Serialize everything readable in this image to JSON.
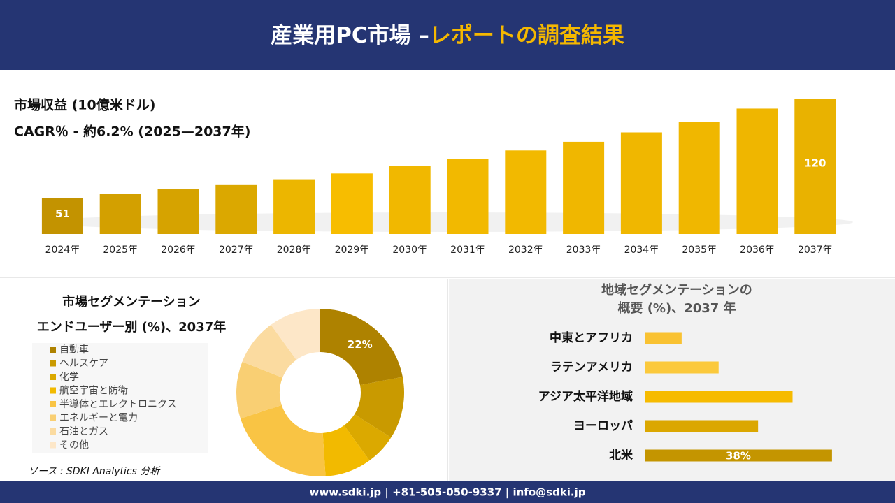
{
  "header": {
    "title": "産業用PC市場 –",
    "title_highlight": "レポートの調査結果"
  },
  "chart_data": [
    {
      "type": "bar",
      "title": "市場収益 (10億米ドル)",
      "subtitle": "CAGR％ - 約6.2% (2025—2037年)",
      "categories": [
        "2024年",
        "2025年",
        "2026年",
        "2027年",
        "2028年",
        "2029年",
        "2030年",
        "2031年",
        "2032年",
        "2033年",
        "2034年",
        "2035年",
        "2036年",
        "2037年"
      ],
      "values": [
        51,
        54,
        57,
        60,
        64,
        68,
        73,
        78,
        84,
        90,
        96.5,
        104,
        113,
        120
      ],
      "value_labels": [
        "51",
        null,
        null,
        null,
        null,
        null,
        null,
        null,
        null,
        null,
        null,
        null,
        null,
        "120"
      ],
      "colors": [
        "#c39300",
        "#d3a000",
        "#d6a300",
        "#dba800",
        "#ecb600",
        "#f7bd00",
        "#f1b800",
        "#f2b900",
        "#f2b900",
        "#f0b700",
        "#f0b700",
        "#f0b700",
        "#efb600",
        "#e9b200"
      ],
      "ylim": [
        26,
        120
      ]
    },
    {
      "type": "pie",
      "title": "市場セグメンテーション",
      "subtitle": "エンドユーザー別 (%)、2037年",
      "categories": [
        "自動車",
        "ヘルスケア",
        "化学",
        "航空宇宙と防衛",
        "半導体とエレクトロニクス",
        "エネルギーと電力",
        "石油とガス",
        "その他"
      ],
      "values": [
        22,
        12,
        6,
        9,
        21,
        11,
        9,
        10
      ],
      "value_labels": [
        "22%",
        null,
        null,
        null,
        null,
        null,
        null,
        null
      ],
      "colors": [
        "#ae8200",
        "#c99a00",
        "#dba900",
        "#f2ba00",
        "#f9c444",
        "#f9cf73",
        "#fbdba0",
        "#fde7c8"
      ]
    },
    {
      "type": "hbar",
      "title": "地域セグメンテーションの",
      "subtitle": "概要 (%)、2037 年",
      "categories": [
        "中東とアフリカ",
        "ラテンアメリカ",
        "アジア太平洋地域",
        "ヨーロッパ",
        "北米"
      ],
      "values": [
        7.5,
        15,
        30,
        23,
        38
      ],
      "value_labels": [
        null,
        null,
        null,
        null,
        "38%"
      ],
      "colors": [
        "#f9c232",
        "#fbc93c",
        "#f6bb00",
        "#dba700",
        "#c49500"
      ],
      "xlim": [
        0,
        40
      ]
    }
  ],
  "source": "ソース : SDKI Analytics 分析",
  "footer": "www.sdki.jp | +81-505-050-9337 | info@sdki.jp"
}
